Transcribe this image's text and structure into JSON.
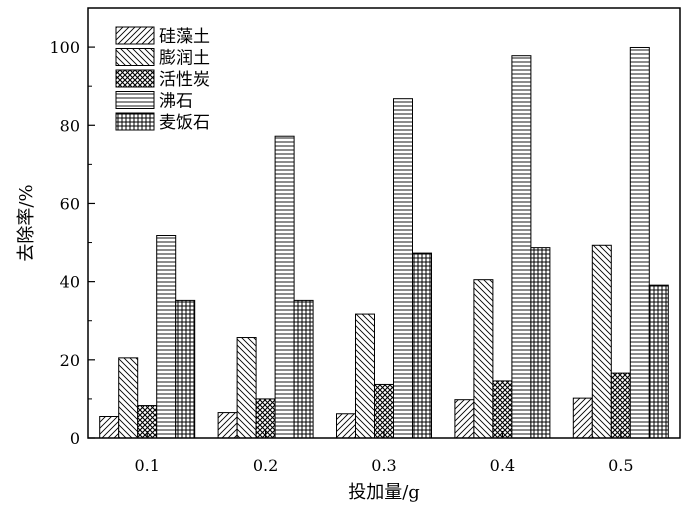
{
  "chart_data": {
    "type": "bar",
    "title": "",
    "xlabel": "投加量/g",
    "ylabel": "去除率/%",
    "categories": [
      "0.1",
      "0.2",
      "0.3",
      "0.4",
      "0.5"
    ],
    "ylim": [
      0,
      110
    ],
    "yticks": [
      "0",
      "20",
      "40",
      "60",
      "80",
      "100"
    ],
    "grid": false,
    "legend_position": "top-left",
    "series": [
      {
        "name": "硅藻土",
        "pattern": "diagonal-up",
        "values": [
          5.5,
          6.5,
          6.2,
          9.8,
          10.2
        ]
      },
      {
        "name": "膨润土",
        "pattern": "diagonal-down",
        "values": [
          20.5,
          25.7,
          31.7,
          40.5,
          49.3
        ]
      },
      {
        "name": "活性炭",
        "pattern": "crosshatch",
        "values": [
          8.3,
          10.0,
          13.7,
          14.6,
          16.6
        ]
      },
      {
        "name": "沸石",
        "pattern": "horizontal",
        "values": [
          51.8,
          77.2,
          86.8,
          97.8,
          99.9
        ]
      },
      {
        "name": "麦饭石",
        "pattern": "grid",
        "values": [
          35.2,
          35.2,
          47.3,
          48.7,
          39.1
        ]
      }
    ]
  }
}
